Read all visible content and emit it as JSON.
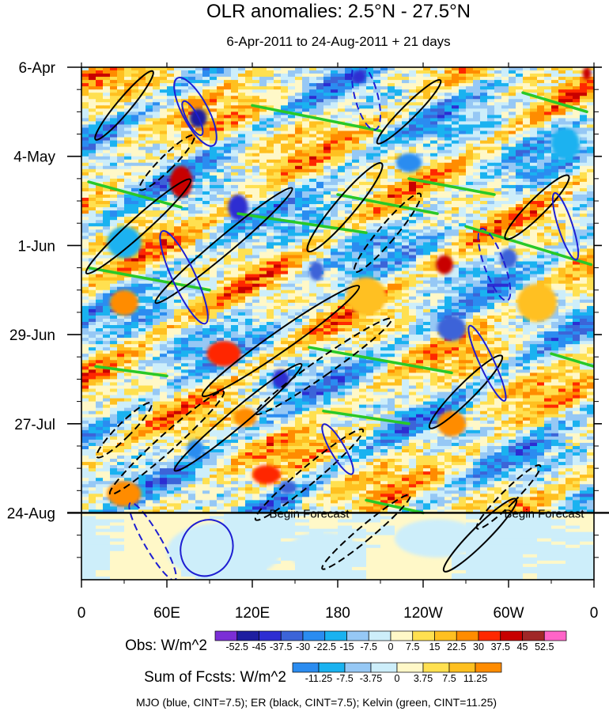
{
  "chart_data": {
    "type": "heatmap",
    "title": "OLR anomalies: 2.5°N - 27.5°N",
    "subtitle": "6-Apr-2011 to 24-Aug-2011 + 21 days",
    "x_ticks": [
      {
        "lon": 0,
        "label": "0"
      },
      {
        "lon": 60,
        "label": "60E"
      },
      {
        "lon": 120,
        "label": "120E"
      },
      {
        "lon": 180,
        "label": "180"
      },
      {
        "lon": 240,
        "label": "120W"
      },
      {
        "lon": 300,
        "label": "60W"
      },
      {
        "lon": 360,
        "label": "0"
      }
    ],
    "x_range": [
      0,
      360
    ],
    "y_ticks": [
      {
        "day": 0,
        "label": "6-Apr"
      },
      {
        "day": 28,
        "label": "4-May"
      },
      {
        "day": 56,
        "label": "1-Jun"
      },
      {
        "day": 84,
        "label": "29-Jun"
      },
      {
        "day": 112,
        "label": "27-Jul"
      },
      {
        "day": 140,
        "label": "24-Aug"
      }
    ],
    "y_range_days": [
      0,
      161
    ],
    "forecast_start_day": 140,
    "forecast_labels": [
      {
        "lon": 160,
        "text": "Begin Forecast"
      },
      {
        "lon": 325,
        "text": "Begin Forecast"
      }
    ],
    "obs_colorbar": {
      "label": "Obs: W/m^2",
      "levels": [
        "-52.5",
        "-45",
        "-37.5",
        "-30",
        "-22.5",
        "-15",
        "-7.5",
        "0",
        "7.5",
        "15",
        "22.5",
        "30",
        "37.5",
        "45",
        "52.5"
      ],
      "colors": [
        "#7b2fd6",
        "#1e1ea0",
        "#2d2dd2",
        "#3c64d8",
        "#2b8cf0",
        "#1ab2f0",
        "#96c8f5",
        "#cdeefa",
        "#fff8c8",
        "#ffe050",
        "#ffc020",
        "#ff8c00",
        "#ff2800",
        "#c80000",
        "#a02828",
        "#ff64c8"
      ]
    },
    "fcst_colorbar": {
      "label": "Sum of Fcsts: W/m^2",
      "levels": [
        "-11.25",
        "-7.5",
        "-3.75",
        "0",
        "3.75",
        "7.5",
        "11.25"
      ],
      "colors": [
        "#2b8cf0",
        "#1ab2f0",
        "#96c8f5",
        "#cdeefa",
        "#fff8c8",
        "#ffe050",
        "#ffc020",
        "#ff8c00"
      ]
    },
    "contour_legend": "MJO (blue, CINT=7.5); ER (black, CINT=7.5); Kelvin (green, CINT=11.25)",
    "contour_colors": {
      "mjo": "#1e1ed2",
      "er": "#000000",
      "kelvin": "#28c828"
    },
    "mjo_contours": [
      {
        "lon": 80,
        "day": 14,
        "rx": 9,
        "ry": 12,
        "deg": -28,
        "dashed": false
      },
      {
        "lon": 78,
        "day": 16,
        "rx": 4,
        "ry": 6,
        "deg": -28,
        "dashed": false
      },
      {
        "lon": 72,
        "day": 66,
        "rx": 8,
        "ry": 16,
        "deg": -25,
        "dashed": false
      },
      {
        "lon": 200,
        "day": 9,
        "rx": 8,
        "ry": 11,
        "deg": -15,
        "dashed": true
      },
      {
        "lon": 340,
        "day": 50,
        "rx": 5,
        "ry": 11,
        "deg": -18,
        "dashed": false
      },
      {
        "lon": 88,
        "day": 151,
        "rx": 18,
        "ry": 9,
        "deg": 25,
        "dashed": false
      },
      {
        "lon": 290,
        "day": 62,
        "rx": 7,
        "ry": 12,
        "deg": -20,
        "dashed": true
      },
      {
        "lon": 50,
        "day": 149,
        "rx": 6,
        "ry": 14,
        "deg": -30,
        "dashed": true
      },
      {
        "lon": 285,
        "day": 93,
        "rx": 5,
        "ry": 13,
        "deg": -25,
        "dashed": false
      },
      {
        "lon": 180,
        "day": 120,
        "rx": 5,
        "ry": 9,
        "deg": -30,
        "dashed": false
      }
    ],
    "er_contours": [
      {
        "lon": 30,
        "day": 12,
        "rx": 5,
        "ry": 14,
        "deg": 40,
        "dashed": false
      },
      {
        "lon": 60,
        "day": 30,
        "rx": 5,
        "ry": 12,
        "deg": 45,
        "dashed": true
      },
      {
        "lon": 40,
        "day": 50,
        "rx": 6,
        "ry": 22,
        "deg": 48,
        "dashed": false
      },
      {
        "lon": 100,
        "day": 56,
        "rx": 6,
        "ry": 28,
        "deg": 50,
        "dashed": false
      },
      {
        "lon": 185,
        "day": 44,
        "rx": 7,
        "ry": 18,
        "deg": 40,
        "dashed": false
      },
      {
        "lon": 215,
        "day": 52,
        "rx": 6,
        "ry": 16,
        "deg": 40,
        "dashed": true
      },
      {
        "lon": 230,
        "day": 14,
        "rx": 5,
        "ry": 14,
        "deg": 45,
        "dashed": false
      },
      {
        "lon": 320,
        "day": 44,
        "rx": 6,
        "ry": 14,
        "deg": 45,
        "dashed": false
      },
      {
        "lon": 140,
        "day": 86,
        "rx": 7,
        "ry": 30,
        "deg": 55,
        "dashed": false
      },
      {
        "lon": 170,
        "day": 94,
        "rx": 6,
        "ry": 26,
        "deg": 55,
        "dashed": true
      },
      {
        "lon": 110,
        "day": 110,
        "rx": 6,
        "ry": 26,
        "deg": 50,
        "dashed": false
      },
      {
        "lon": 160,
        "day": 128,
        "rx": 6,
        "ry": 22,
        "deg": 50,
        "dashed": true
      },
      {
        "lon": 270,
        "day": 102,
        "rx": 6,
        "ry": 16,
        "deg": 45,
        "dashed": false
      },
      {
        "lon": 300,
        "day": 135,
        "rx": 5,
        "ry": 14,
        "deg": 45,
        "dashed": true
      },
      {
        "lon": 280,
        "day": 147,
        "rx": 6,
        "ry": 16,
        "deg": 45,
        "dashed": false
      },
      {
        "lon": 60,
        "day": 118,
        "rx": 6,
        "ry": 24,
        "deg": 48,
        "dashed": true
      },
      {
        "lon": 30,
        "day": 114,
        "rx": 5,
        "ry": 12,
        "deg": 45,
        "dashed": true
      },
      {
        "lon": 200,
        "day": 146,
        "rx": 5,
        "ry": 18,
        "deg": 50,
        "dashed": true
      }
    ],
    "kelvin_bands": [
      {
        "lon1": 5,
        "day1": 36,
        "lon2": 70,
        "day2": 44
      },
      {
        "lon1": 110,
        "day1": 46,
        "lon2": 200,
        "day2": 52
      },
      {
        "lon1": 180,
        "day1": 40,
        "lon2": 250,
        "day2": 46
      },
      {
        "lon1": 270,
        "day1": 50,
        "lon2": 358,
        "day2": 62
      },
      {
        "lon1": 5,
        "day1": 63,
        "lon2": 90,
        "day2": 70
      },
      {
        "lon1": 120,
        "day1": 12,
        "lon2": 210,
        "day2": 20
      },
      {
        "lon1": 230,
        "day1": 35,
        "lon2": 290,
        "day2": 40
      },
      {
        "lon1": 160,
        "day1": 88,
        "lon2": 260,
        "day2": 96
      },
      {
        "lon1": 10,
        "day1": 94,
        "lon2": 60,
        "day2": 97
      },
      {
        "lon1": 170,
        "day1": 108,
        "lon2": 230,
        "day2": 112
      },
      {
        "lon1": 310,
        "day1": 8,
        "lon2": 355,
        "day2": 14
      },
      {
        "lon1": 330,
        "day1": 90,
        "lon2": 360,
        "day2": 94
      },
      {
        "lon1": 200,
        "day1": 136,
        "lon2": 240,
        "day2": 140
      }
    ],
    "obs_anomaly_features": [
      {
        "lon": 82,
        "day": 16,
        "rx": 6,
        "ry": 3,
        "value": -52.5
      },
      {
        "lon": 110,
        "day": 44,
        "rx": 7,
        "ry": 4,
        "value": -45
      },
      {
        "lon": 195,
        "day": 3,
        "rx": 5,
        "ry": 2,
        "value": -45
      },
      {
        "lon": 230,
        "day": 30,
        "rx": 9,
        "ry": 3,
        "value": -30
      },
      {
        "lon": 300,
        "day": 60,
        "rx": 6,
        "ry": 3,
        "value": -37.5
      },
      {
        "lon": 260,
        "day": 82,
        "rx": 10,
        "ry": 4,
        "value": -37.5
      },
      {
        "lon": 140,
        "day": 98,
        "rx": 6,
        "ry": 3,
        "value": -45
      },
      {
        "lon": 165,
        "day": 64,
        "rx": 5,
        "ry": 3,
        "value": -37.5
      },
      {
        "lon": 80,
        "day": 120,
        "rx": 6,
        "ry": 3,
        "value": -30
      },
      {
        "lon": 145,
        "day": 132,
        "rx": 6,
        "ry": 2,
        "value": -37.5
      },
      {
        "lon": 30,
        "day": 55,
        "rx": 12,
        "ry": 5,
        "value": -22.5
      },
      {
        "lon": 340,
        "day": 24,
        "rx": 10,
        "ry": 5,
        "value": -22.5
      },
      {
        "lon": 70,
        "day": 36,
        "rx": 8,
        "ry": 5,
        "value": 37.5
      },
      {
        "lon": 255,
        "day": 62,
        "rx": 6,
        "ry": 3,
        "value": 37.5
      },
      {
        "lon": 100,
        "day": 90,
        "rx": 12,
        "ry": 4,
        "value": 30
      },
      {
        "lon": 130,
        "day": 128,
        "rx": 10,
        "ry": 3,
        "value": 30
      },
      {
        "lon": 30,
        "day": 74,
        "rx": 10,
        "ry": 4,
        "value": 22.5
      },
      {
        "lon": 355,
        "day": 2,
        "rx": 3,
        "ry": 2,
        "value": 37.5
      },
      {
        "lon": 115,
        "day": 110,
        "rx": 8,
        "ry": 3,
        "value": 22.5
      },
      {
        "lon": 260,
        "day": 112,
        "rx": 10,
        "ry": 4,
        "value": 22.5
      },
      {
        "lon": 200,
        "day": 72,
        "rx": 14,
        "ry": 6,
        "value": 15
      },
      {
        "lon": 320,
        "day": 74,
        "rx": 14,
        "ry": 6,
        "value": 15
      },
      {
        "lon": 30,
        "day": 134,
        "rx": 12,
        "ry": 4,
        "value": 22.5
      }
    ],
    "fcst_anomaly_features": [
      {
        "lon": 250,
        "day": 148,
        "rx": 30,
        "ry": 6,
        "value": -3.75
      },
      {
        "lon": 100,
        "day": 152,
        "rx": 40,
        "ry": 9,
        "value": -3.75
      },
      {
        "lon": 170,
        "day": 152,
        "rx": 25,
        "ry": 6,
        "value": -3.75
      }
    ]
  }
}
